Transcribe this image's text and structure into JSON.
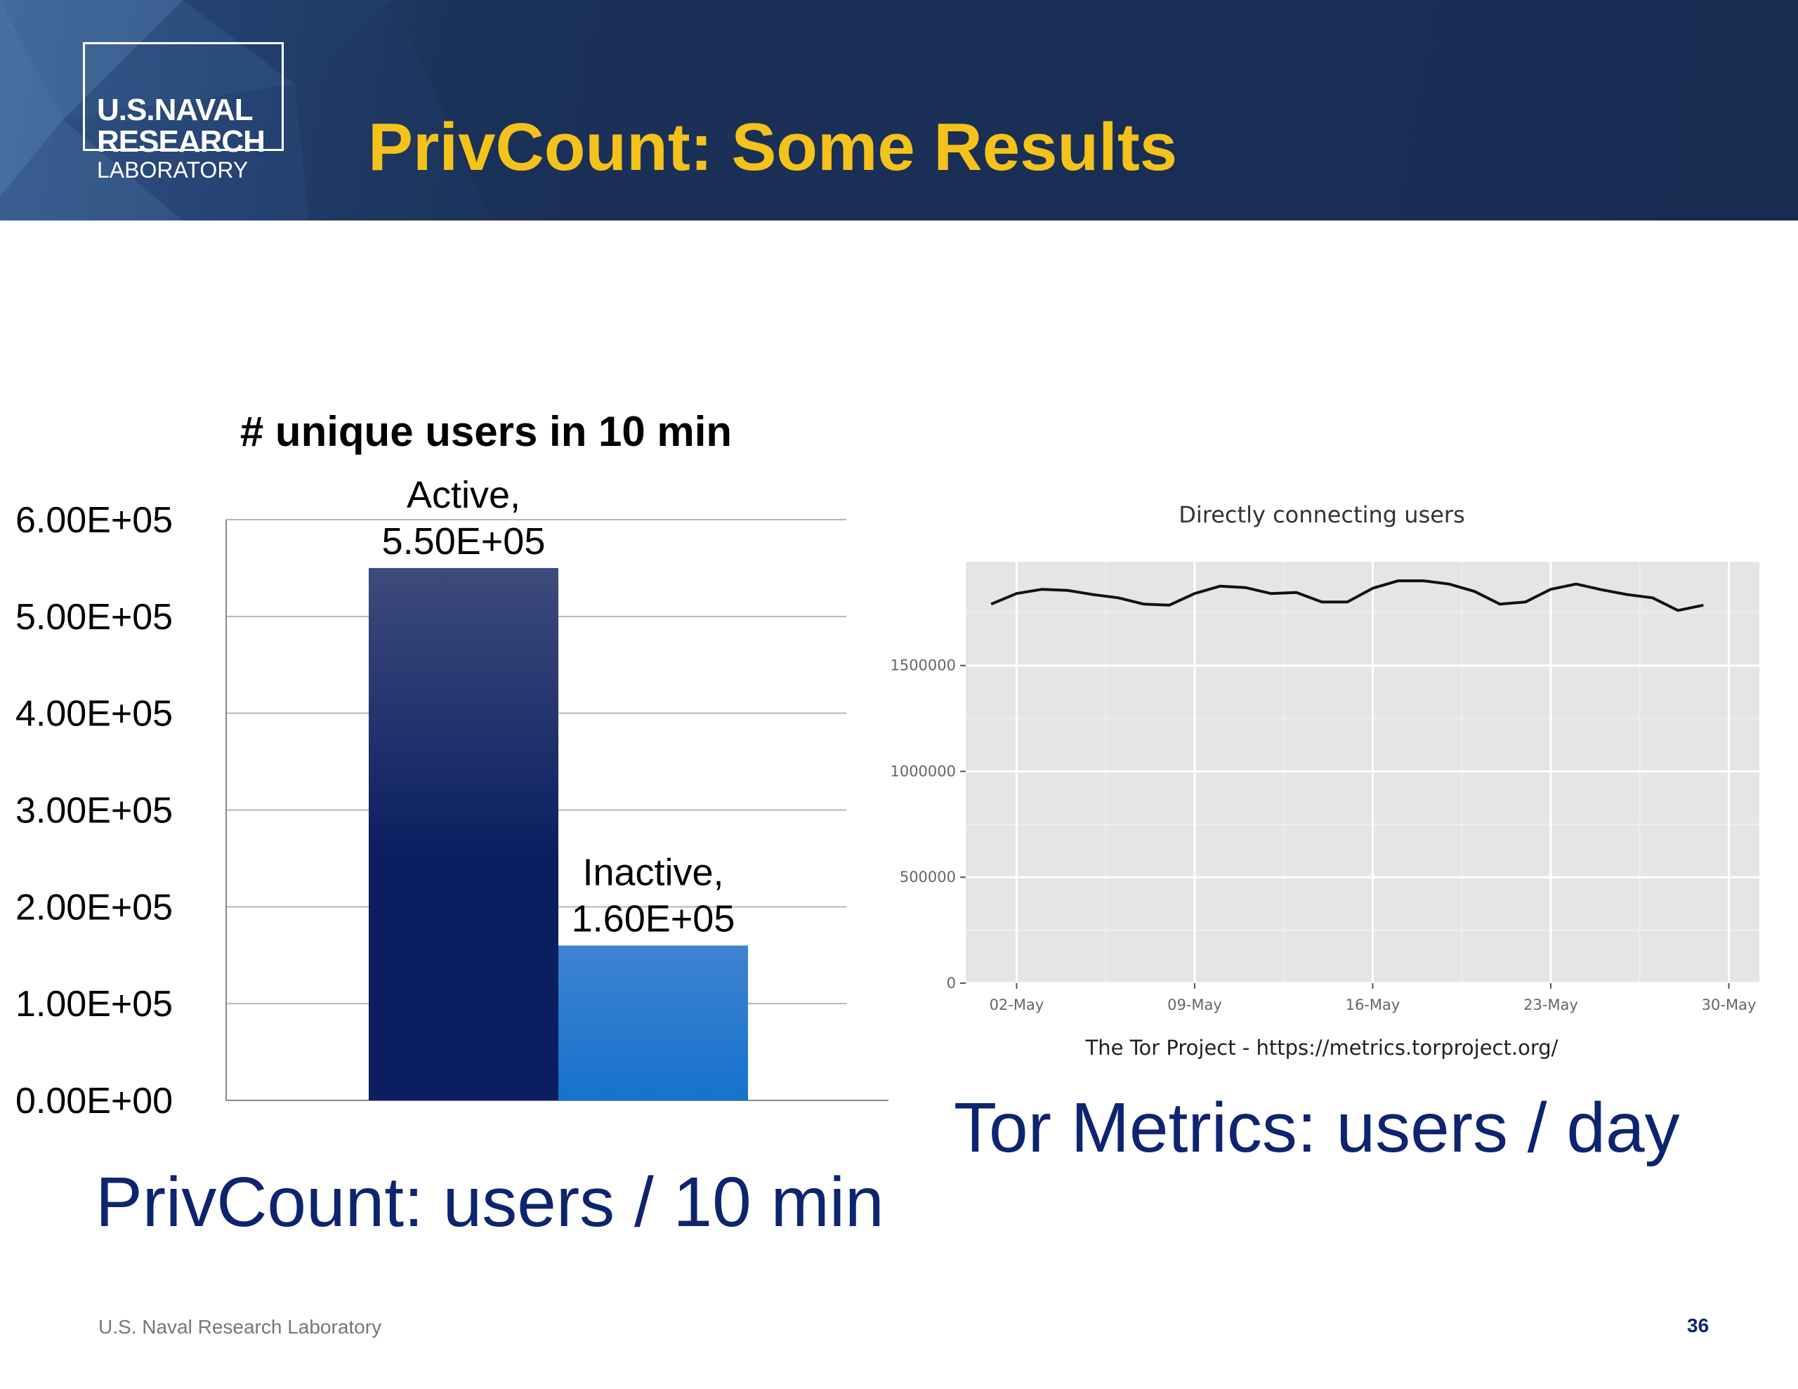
{
  "header": {
    "logo_lines": [
      "U.S.NAVAL",
      "RESEARCH",
      "LABORATORY"
    ],
    "title": "PrivCount: Some Results"
  },
  "colors": {
    "header_bg": "#182c52",
    "title": "#f4c21a",
    "caption": "#0d2470",
    "bar_active": "#0a1e60",
    "bar_inactive": "#1573cc",
    "tor_panel_bg": "#e5e5e5"
  },
  "left_caption": "PrivCount: users / 10 min",
  "right_caption": "Tor Metrics: users / day",
  "footer": {
    "text": "U.S. Naval Research Laboratory",
    "page": "36"
  },
  "chart_data": [
    {
      "type": "bar",
      "title": "# unique users in 10 min",
      "categories": [
        "Active",
        "Inactive"
      ],
      "values": [
        550000,
        160000
      ],
      "data_labels": [
        [
          "Active,",
          "5.50E+05"
        ],
        [
          "Inactive,",
          "1.60E+05"
        ]
      ],
      "y_ticks": [
        "0.00E+00",
        "1.00E+05",
        "2.00E+05",
        "3.00E+05",
        "4.00E+05",
        "5.00E+05",
        "6.00E+05"
      ],
      "ylim": [
        0,
        600000
      ],
      "grid": true,
      "legend": "none"
    },
    {
      "type": "line",
      "title": "Directly connecting users",
      "caption": "The Tor Project - https://metrics.torproject.org/",
      "x": [
        "2016-05-01",
        "2016-05-02",
        "2016-05-03",
        "2016-05-04",
        "2016-05-05",
        "2016-05-06",
        "2016-05-07",
        "2016-05-08",
        "2016-05-09",
        "2016-05-10",
        "2016-05-11",
        "2016-05-12",
        "2016-05-13",
        "2016-05-14",
        "2016-05-15",
        "2016-05-16",
        "2016-05-17",
        "2016-05-18",
        "2016-05-19",
        "2016-05-20",
        "2016-05-21",
        "2016-05-22",
        "2016-05-23",
        "2016-05-24",
        "2016-05-25",
        "2016-05-26",
        "2016-05-27",
        "2016-05-28",
        "2016-05-29"
      ],
      "y": [
        1790000,
        1840000,
        1860000,
        1855000,
        1835000,
        1820000,
        1790000,
        1785000,
        1840000,
        1875000,
        1868000,
        1840000,
        1845000,
        1800000,
        1800000,
        1865000,
        1900000,
        1900000,
        1885000,
        1850000,
        1790000,
        1800000,
        1860000,
        1885000,
        1858000,
        1835000,
        1820000,
        1760000,
        1785000
      ],
      "x_ticks": [
        "02-May",
        "09-May",
        "16-May",
        "23-May",
        "30-May"
      ],
      "y_ticks": [
        "0",
        "500000",
        "1000000",
        "1500000"
      ],
      "ylim": [
        0,
        1990000
      ],
      "grid": true,
      "legend": "none"
    }
  ]
}
